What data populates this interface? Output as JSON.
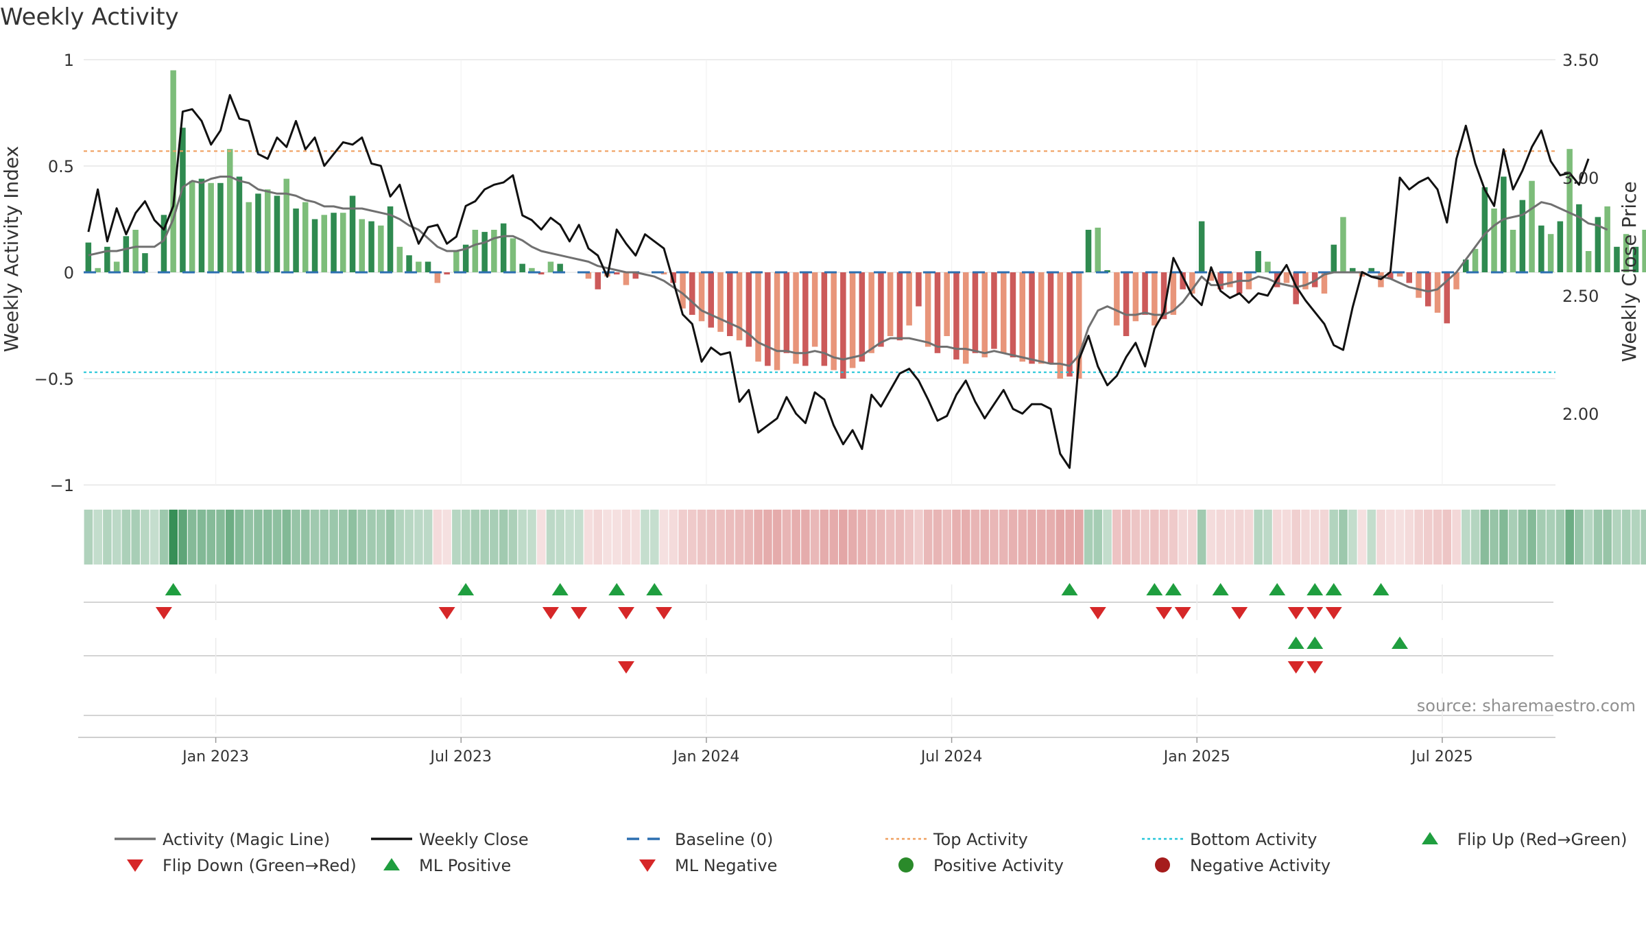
{
  "chart_data": {
    "type": "bar+line",
    "title": "Weekly Activity",
    "ylabel_left": "Weekly Activity Index",
    "ylabel_right": "Weekly Close Price",
    "ylim_left": [
      -1,
      1
    ],
    "ylim_right": [
      1.7,
      3.5
    ],
    "yticks_left": [
      {
        "v": 1,
        "label": "1"
      },
      {
        "v": 0.5,
        "label": "0.5"
      },
      {
        "v": 0,
        "label": "0"
      },
      {
        "v": -0.5,
        "label": "−0.5"
      },
      {
        "v": -1,
        "label": "−1"
      }
    ],
    "yticks_right": [
      {
        "v": 3.5,
        "label": "3.50"
      },
      {
        "v": 3.0,
        "label": "3.00"
      },
      {
        "v": 2.5,
        "label": "2.50"
      },
      {
        "v": 2.0,
        "label": "2.00"
      }
    ],
    "x_range_weeks": [
      0,
      156
    ],
    "xticks": [
      {
        "w": 14,
        "label": "Jan 2023"
      },
      {
        "w": 40,
        "label": "Jul 2023"
      },
      {
        "w": 66,
        "label": "Jan 2024"
      },
      {
        "w": 92,
        "label": "Jul 2024"
      },
      {
        "w": 118,
        "label": "Jan 2025"
      },
      {
        "w": 144,
        "label": "Jul 2025"
      }
    ],
    "top_activity": 0.57,
    "bottom_activity": -0.47,
    "activity": [
      0.14,
      0.02,
      0.12,
      0.05,
      0.17,
      0.2,
      0.09,
      0,
      0.27,
      0.95,
      0.68,
      0.43,
      0.44,
      0.42,
      0.42,
      0.58,
      0.45,
      0.33,
      0.37,
      0.39,
      0.36,
      0.44,
      0.3,
      0.33,
      0.25,
      0.27,
      0.28,
      0.28,
      0.36,
      0.25,
      0.24,
      0.22,
      0.31,
      0.12,
      0.08,
      0.05,
      0.05,
      -0.05,
      -0.01,
      0.1,
      0.13,
      0.2,
      0.19,
      0.2,
      0.23,
      0.16,
      0.04,
      0.02,
      -0.01,
      0.05,
      0.04,
      0,
      0,
      -0.03,
      -0.08,
      -0.02,
      -0.01,
      -0.06,
      -0.03,
      0,
      0,
      -0.01,
      -0.05,
      -0.17,
      -0.2,
      -0.23,
      -0.26,
      -0.28,
      -0.3,
      -0.32,
      -0.35,
      -0.42,
      -0.44,
      -0.46,
      -0.38,
      -0.43,
      -0.44,
      -0.35,
      -0.44,
      -0.46,
      -0.5,
      -0.45,
      -0.42,
      -0.38,
      -0.35,
      -0.3,
      -0.32,
      -0.25,
      -0.16,
      -0.35,
      -0.38,
      -0.3,
      -0.41,
      -0.43,
      -0.38,
      -0.4,
      -0.36,
      -0.38,
      -0.4,
      -0.42,
      -0.43,
      -0.43,
      -0.43,
      -0.5,
      -0.49,
      -0.5,
      0.2,
      0.21,
      0.01,
      -0.25,
      -0.3,
      -0.23,
      -0.2,
      -0.25,
      -0.22,
      -0.2,
      -0.08,
      -0.1,
      0.24,
      -0.04,
      -0.08,
      -0.07,
      -0.1,
      -0.08,
      0.1,
      0.05,
      -0.07,
      -0.05,
      -0.15,
      -0.08,
      -0.07,
      -0.1,
      0.13,
      0.26,
      0.02,
      -0.02,
      0.02,
      -0.07,
      -0.03,
      -0.02,
      -0.05,
      -0.12,
      -0.16,
      -0.19,
      -0.24,
      -0.08,
      0.06,
      0.11,
      0.4,
      0.3,
      0.45,
      0.2,
      0.34,
      0.43,
      0.22,
      0.18,
      0.24,
      0.58,
      0.32,
      0.1,
      0.26,
      0.31,
      0.12,
      0.18,
      0.12,
      0.2
    ],
    "magic_line": [
      0.08,
      0.09,
      0.1,
      0.1,
      0.11,
      0.12,
      0.12,
      0.12,
      0.15,
      0.25,
      0.4,
      0.43,
      0.42,
      0.44,
      0.45,
      0.45,
      0.43,
      0.42,
      0.39,
      0.38,
      0.37,
      0.37,
      0.36,
      0.34,
      0.33,
      0.31,
      0.31,
      0.3,
      0.3,
      0.3,
      0.29,
      0.28,
      0.27,
      0.25,
      0.22,
      0.2,
      0.16,
      0.12,
      0.1,
      0.1,
      0.11,
      0.13,
      0.14,
      0.16,
      0.17,
      0.17,
      0.15,
      0.12,
      0.1,
      0.09,
      0.08,
      0.07,
      0.06,
      0.05,
      0.03,
      0.02,
      0.01,
      0,
      0,
      -0.01,
      -0.02,
      -0.04,
      -0.07,
      -0.1,
      -0.14,
      -0.18,
      -0.2,
      -0.22,
      -0.24,
      -0.26,
      -0.29,
      -0.33,
      -0.35,
      -0.37,
      -0.37,
      -0.38,
      -0.38,
      -0.37,
      -0.38,
      -0.4,
      -0.41,
      -0.4,
      -0.39,
      -0.36,
      -0.33,
      -0.31,
      -0.31,
      -0.31,
      -0.32,
      -0.33,
      -0.35,
      -0.35,
      -0.36,
      -0.36,
      -0.37,
      -0.38,
      -0.37,
      -0.38,
      -0.39,
      -0.4,
      -0.41,
      -0.42,
      -0.43,
      -0.43,
      -0.44,
      -0.39,
      -0.26,
      -0.18,
      -0.16,
      -0.18,
      -0.2,
      -0.2,
      -0.19,
      -0.2,
      -0.2,
      -0.18,
      -0.14,
      -0.08,
      -0.02,
      -0.06,
      -0.06,
      -0.05,
      -0.04,
      -0.04,
      -0.02,
      -0.03,
      -0.05,
      -0.06,
      -0.07,
      -0.06,
      -0.04,
      -0.01,
      0,
      0,
      0,
      0,
      -0.02,
      -0.02,
      -0.03,
      -0.05,
      -0.07,
      -0.08,
      -0.09,
      -0.08,
      -0.04,
      0,
      0.06,
      0.12,
      0.18,
      0.22,
      0.25,
      0.26,
      0.27,
      0.3,
      0.33,
      0.32,
      0.3,
      0.28,
      0.26,
      0.23,
      0.22,
      0.2
    ],
    "weekly_close": [
      2.77,
      2.95,
      2.73,
      2.87,
      2.76,
      2.85,
      2.9,
      2.82,
      2.78,
      2.88,
      3.28,
      3.29,
      3.24,
      3.14,
      3.2,
      3.35,
      3.25,
      3.24,
      3.1,
      3.08,
      3.17,
      3.13,
      3.24,
      3.12,
      3.17,
      3.05,
      3.1,
      3.15,
      3.14,
      3.17,
      3.06,
      3.05,
      2.92,
      2.97,
      2.83,
      2.72,
      2.79,
      2.8,
      2.72,
      2.75,
      2.88,
      2.9,
      2.95,
      2.97,
      2.98,
      3.01,
      2.84,
      2.82,
      2.78,
      2.83,
      2.8,
      2.73,
      2.8,
      2.7,
      2.67,
      2.58,
      2.78,
      2.72,
      2.67,
      2.76,
      2.73,
      2.7,
      2.56,
      2.42,
      2.38,
      2.22,
      2.28,
      2.25,
      2.26,
      2.05,
      2.1,
      1.92,
      1.95,
      1.98,
      2.07,
      2.0,
      1.96,
      2.09,
      2.06,
      1.95,
      1.87,
      1.93,
      1.85,
      2.08,
      2.03,
      2.1,
      2.17,
      2.19,
      2.14,
      2.06,
      1.97,
      1.99,
      2.08,
      2.14,
      2.05,
      1.98,
      2.04,
      2.1,
      2.02,
      2.0,
      2.04,
      2.04,
      2.02,
      1.83,
      1.77,
      2.23,
      2.33,
      2.2,
      2.12,
      2.16,
      2.24,
      2.3,
      2.2,
      2.36,
      2.43,
      2.66,
      2.58,
      2.5,
      2.46,
      2.62,
      2.52,
      2.49,
      2.51,
      2.47,
      2.51,
      2.5,
      2.57,
      2.63,
      2.54,
      2.48,
      2.43,
      2.38,
      2.29,
      2.27,
      2.45,
      2.6,
      2.58,
      2.57,
      2.6,
      3.0,
      2.95,
      2.98,
      3.0,
      2.95,
      2.81,
      3.08,
      3.22,
      3.06,
      2.95,
      2.88,
      3.12,
      2.95,
      3.03,
      3.13,
      3.2,
      3.07,
      3.01,
      3.02,
      2.97,
      3.08
    ],
    "flip_up": [
      9,
      40,
      50,
      56,
      60,
      104,
      113,
      115,
      120,
      126,
      130,
      132,
      137
    ],
    "flip_down": [
      8,
      38,
      49,
      52,
      57,
      61,
      107,
      114,
      116,
      122,
      128,
      130,
      132
    ],
    "ml_positive": [
      128,
      130,
      139
    ],
    "ml_negative": [
      57,
      128,
      130
    ],
    "source": "source: sharemaestro.com",
    "legend": [
      {
        "label": "Activity (Magic Line)",
        "kind": "line",
        "color": "#707070"
      },
      {
        "label": "Weekly Close",
        "kind": "line",
        "color": "#111111"
      },
      {
        "label": "Baseline (0)",
        "kind": "dash",
        "color": "#2c6fb0"
      },
      {
        "label": "Top Activity",
        "kind": "dot",
        "color": "#f0a060"
      },
      {
        "label": "Bottom Activity",
        "kind": "dot",
        "color": "#25c6d9"
      },
      {
        "label": "Flip Up (Red→Green)",
        "kind": "tri-up",
        "color": "#1f9e3f"
      },
      {
        "label": "Flip Down (Green→Red)",
        "kind": "tri-down",
        "color": "#d62728"
      },
      {
        "label": "ML Positive",
        "kind": "tri-up",
        "color": "#1f9e3f"
      },
      {
        "label": "ML Negative",
        "kind": "tri-down",
        "color": "#d62728"
      },
      {
        "label": "Positive Activity",
        "kind": "circle",
        "color": "#2a8a2a"
      },
      {
        "label": "Negative Activity",
        "kind": "circle",
        "color": "#a51c1c"
      }
    ],
    "colors": {
      "pos_dark": "#2f8a50",
      "pos_light": "#7dbd7a",
      "neg_dark": "#cc5a5a",
      "neg_light": "#e8957a",
      "grid": "#e6e6e6"
    }
  }
}
